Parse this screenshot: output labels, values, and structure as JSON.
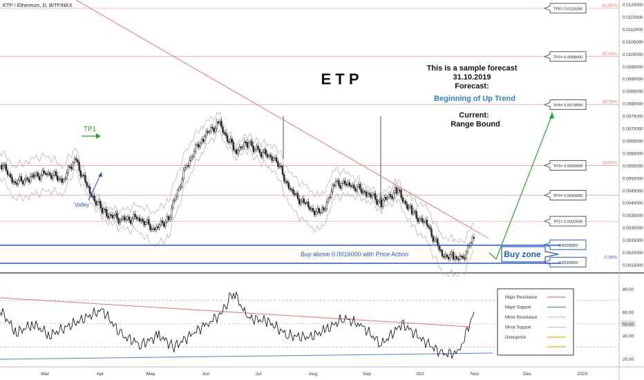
{
  "header": {
    "symbol_title": "ETP / Ethereum, D, BITFINEX"
  },
  "annotations": {
    "big_label": "E T P",
    "sample_line1": "This is a sample forecast",
    "sample_line2": "31.10.2019",
    "sample_line3": "Forecast:",
    "forecast": "Beginning of Up Trend",
    "current_label": "Current:",
    "current": "Range Bound",
    "tp1_arrow_label": "TP1",
    "valley_label": "Valley",
    "buy_text": "Buy above 0.0016000 with Price Action",
    "buy_zone": "Buy zone"
  },
  "colors": {
    "resistance": "#e57373",
    "support": "#1e5bbf",
    "fib": "#e57373",
    "forecast_arrow": "#22a722",
    "tp1_green": "#22a722",
    "forecast_text": "#2f7fd1",
    "rsi_line": "#1a1a1a"
  },
  "chart_data": [
    {
      "type": "line",
      "name": "price",
      "symbol": "ETP/ETH",
      "timeframe": "D",
      "exchange": "BITFINEX",
      "y_axis_ticks": [
        "0.0120000",
        "0.0115000",
        "0.0110000",
        "0.0105000",
        "0.0100000",
        "0.0095000",
        "0.0090000",
        "0.0085000",
        "0.0080000",
        "0.0075000",
        "0.0070000",
        "0.0065000",
        "0.0060000",
        "0.0055000",
        "0.0050000",
        "0.0045000",
        "0.0040000",
        "0.0035000",
        "0.0030000",
        "0.0025000",
        "0.0020000",
        "0.0015000"
      ],
      "x_axis_ticks": [
        "Mar",
        "Apr",
        "May",
        "Jun",
        "Jul",
        "Aug",
        "Sep",
        "Oct",
        "Nov",
        "Dec",
        "2020"
      ],
      "x": [
        "Feb 20",
        "Mar 1",
        "Mar 10",
        "Mar 20",
        "Mar 28",
        "Apr 2",
        "Apr 10",
        "Apr 20",
        "May 1",
        "May 10",
        "May 20",
        "May 28",
        "Jun 5",
        "Jun 12",
        "Jun 20",
        "Jun 28",
        "Jul 5",
        "Jul 12",
        "Jul 20",
        "Jul 28",
        "Aug 5",
        "Aug 12",
        "Aug 20",
        "Aug 28",
        "Sep 5",
        "Sep 12",
        "Sep 20",
        "Sep 28",
        "Oct 5",
        "Oct 12",
        "Oct 18",
        "Oct 25",
        "Oct 31"
      ],
      "values": [
        0.0056,
        0.0048,
        0.005,
        0.0052,
        0.0049,
        0.0058,
        0.0044,
        0.0036,
        0.0033,
        0.0034,
        0.0029,
        0.0034,
        0.0055,
        0.0066,
        0.0072,
        0.0061,
        0.0064,
        0.006,
        0.0058,
        0.0045,
        0.0039,
        0.0035,
        0.0048,
        0.0047,
        0.0044,
        0.004,
        0.0045,
        0.0036,
        0.0031,
        0.0019,
        0.0018,
        0.0017,
        0.0026
      ],
      "take_profits": [
        {
          "label": "TP6= 0.0118350",
          "value": 0.011835
        },
        {
          "label": "TP5= 0.0098900",
          "value": 0.00989
        },
        {
          "label": "TP4= 0.0079500",
          "value": 0.00795
        },
        {
          "label": "TP3= 0.0055000",
          "value": 0.0055
        },
        {
          "label": "TP2= 0.0043000",
          "value": 0.0043
        },
        {
          "label": "TP1= 0.0032500",
          "value": 0.00325
        }
      ],
      "buy_zone": {
        "upper_label": "0.0023000",
        "lower_label": "0.0016000",
        "upper": 0.0023,
        "lower": 0.0016
      },
      "fib_levels": [
        {
          "label": "61.80%",
          "value": 0.011835
        },
        {
          "label": "50.00%",
          "value": 0.00989
        },
        {
          "label": "38.20%",
          "value": 0.00795
        },
        {
          "label": "23.60%",
          "value": 0.0055
        },
        {
          "label": "0.00%",
          "value": 0.0016
        }
      ]
    },
    {
      "type": "line",
      "name": "rsi",
      "y_axis_ticks": [
        "80.00",
        "60.00",
        "50.00",
        "40.00",
        "20.00"
      ],
      "highlight_label": "50.00",
      "x": [
        "Feb 20",
        "Mar 1",
        "Mar 10",
        "Mar 20",
        "Apr 1",
        "Apr 10",
        "Apr 20",
        "May 1",
        "May 10",
        "May 20",
        "Jun 1",
        "Jun 10",
        "Jun 20",
        "Jun 28",
        "Jul 5",
        "Jul 15",
        "Jul 25",
        "Aug 5",
        "Aug 15",
        "Aug 25",
        "Sep 5",
        "Sep 15",
        "Sep 25",
        "Oct 5",
        "Oct 15",
        "Oct 22",
        "Oct 31"
      ],
      "values": [
        62,
        42,
        50,
        40,
        62,
        40,
        32,
        40,
        30,
        42,
        52,
        58,
        70,
        78,
        55,
        52,
        40,
        38,
        44,
        55,
        48,
        32,
        50,
        36,
        24,
        25,
        60
      ],
      "legend": [
        "Major Resistance",
        "Major Support",
        "Minor Resistance",
        "Minor Support",
        "Divergence"
      ]
    }
  ]
}
